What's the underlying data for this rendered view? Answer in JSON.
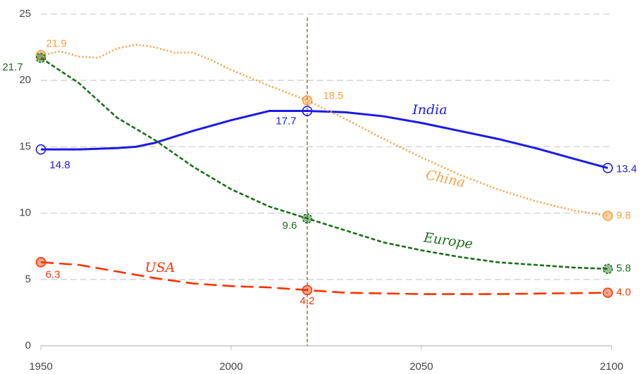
{
  "chart_data": {
    "type": "line",
    "xlim": [
      1950,
      2100
    ],
    "xticks": [
      1950,
      2000,
      2050,
      2100
    ],
    "ylim": [
      0,
      25
    ],
    "yticks": [
      0,
      5,
      10,
      15,
      20,
      25
    ],
    "grid": true,
    "vline": 2020,
    "vline_color": "#8b5a2b",
    "series": [
      {
        "name": "India",
        "color": "#1a1ae6",
        "dash": "solid",
        "x": [
          1950,
          1955,
          1960,
          1970,
          1975,
          1980,
          1990,
          2000,
          2010,
          2020,
          2030,
          2040,
          2050,
          2060,
          2070,
          2080,
          2090,
          2099
        ],
        "values": [
          14.8,
          14.8,
          14.8,
          14.9,
          15.0,
          15.3,
          16.2,
          17.0,
          17.7,
          17.7,
          17.6,
          17.3,
          16.8,
          16.2,
          15.6,
          14.9,
          14.1,
          13.4
        ],
        "value_labels": [
          "14.8",
          null,
          null,
          null,
          null,
          null,
          null,
          null,
          null,
          "17.7",
          null,
          null,
          null,
          null,
          null,
          null,
          null,
          "13.4"
        ]
      },
      {
        "name": "China",
        "color": "#f5a040",
        "dash": "dot",
        "x": [
          1950,
          1955,
          1960,
          1965,
          1970,
          1975,
          1980,
          1985,
          1990,
          1995,
          2000,
          2010,
          2020,
          2030,
          2040,
          2050,
          2060,
          2070,
          2080,
          2090,
          2099
        ],
        "values": [
          21.9,
          22.2,
          21.8,
          21.7,
          22.4,
          22.7,
          22.5,
          22.1,
          22.1,
          21.5,
          20.8,
          19.6,
          18.5,
          17.1,
          15.6,
          14.2,
          12.9,
          11.8,
          10.9,
          10.2,
          9.8
        ],
        "value_labels": [
          "21.9",
          null,
          null,
          null,
          null,
          null,
          null,
          null,
          null,
          null,
          null,
          null,
          "18.5",
          null,
          null,
          null,
          null,
          null,
          null,
          null,
          "9.8"
        ]
      },
      {
        "name": "Europe",
        "color": "#1a6e1a",
        "dash": "dash",
        "x": [
          1950,
          1960,
          1970,
          1980,
          1990,
          2000,
          2010,
          2020,
          2030,
          2040,
          2050,
          2060,
          2070,
          2080,
          2090,
          2099
        ],
        "values": [
          21.7,
          19.8,
          17.2,
          15.5,
          13.5,
          11.8,
          10.5,
          9.6,
          8.7,
          7.8,
          7.2,
          6.7,
          6.3,
          6.1,
          5.9,
          5.8
        ],
        "value_labels": [
          "21.7",
          null,
          null,
          null,
          null,
          null,
          null,
          "9.6",
          null,
          null,
          null,
          null,
          null,
          null,
          null,
          "5.8"
        ]
      },
      {
        "name": "USA",
        "color": "#ff3300",
        "dash": "longdash",
        "x": [
          1950,
          1960,
          1970,
          1980,
          1990,
          2000,
          2010,
          2020,
          2030,
          2050,
          2070,
          2099
        ],
        "values": [
          6.3,
          6.1,
          5.6,
          5.1,
          4.7,
          4.5,
          4.4,
          4.2,
          4.0,
          3.9,
          3.9,
          4.0
        ],
        "value_labels": [
          "6.3",
          null,
          null,
          null,
          null,
          null,
          null,
          "4.2",
          null,
          null,
          null,
          "4.0"
        ]
      }
    ]
  }
}
